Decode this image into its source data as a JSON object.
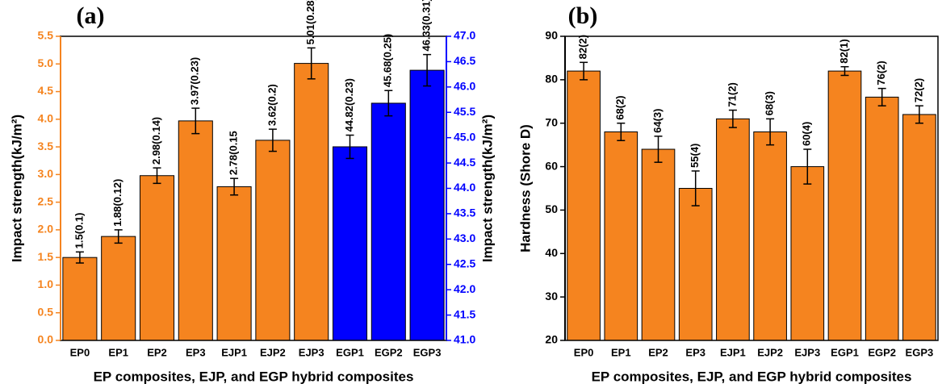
{
  "chart_data": [
    {
      "type": "bar",
      "title": "(a)",
      "xlabel": "EP composites, EJP, and EGP hybrid composites",
      "ylabel": "Impact strength(kJ/m²)",
      "y2label": "Impact strength(kJ/m²)",
      "categories": [
        "EP0",
        "EP1",
        "EP2",
        "EP3",
        "EJP1",
        "EJP2",
        "EJP3",
        "EGP1",
        "EGP2",
        "EGP3"
      ],
      "ylim": [
        0,
        5.5
      ],
      "yticks": [
        {
          "value": 0,
          "label": "0.0"
        },
        0.5,
        {
          "value": 1,
          "label": "1.0"
        },
        1.5,
        {
          "value": 2,
          "label": "2.0"
        },
        2.5,
        {
          "value": 3,
          "label": "3.0"
        },
        3.5,
        {
          "value": 4,
          "label": "4.0"
        },
        4.5,
        {
          "value": 5,
          "label": "5.0"
        },
        5.5
      ],
      "y2lim": [
        41,
        47
      ],
      "y2ticks": [
        {
          "value": 41,
          "label": "41.0"
        },
        41.5,
        {
          "value": 42,
          "label": "42.0"
        },
        42.5,
        {
          "value": 43,
          "label": "43.0"
        },
        43.5,
        {
          "value": 44,
          "label": "44.0"
        },
        44.5,
        {
          "value": 45,
          "label": "45.0"
        },
        45.5,
        {
          "value": 46,
          "label": "46.0"
        },
        46.5,
        {
          "value": 47,
          "label": "47.0"
        }
      ],
      "y_color": "#f5841f",
      "y2_color": "#0000ff",
      "series": [
        {
          "color": "#f5841f",
          "values": [
            1.5,
            1.88,
            2.98,
            3.97,
            2.78,
            3.62,
            5.01,
            null,
            null,
            null
          ],
          "errors": [
            0.1,
            0.12,
            0.14,
            0.23,
            0.15,
            0.2,
            0.28,
            null,
            null,
            null
          ],
          "value_labels": [
            "1.5(0.1)",
            "1.88(0.12)",
            "2.98(0.14)",
            "3.97(0.23)",
            "2.78(0.15",
            "3.62(0.2)",
            "5.01(0.28)",
            null,
            null,
            null
          ]
        },
        {
          "color": "#0000ff",
          "axis": "y2",
          "values": [
            null,
            null,
            null,
            null,
            null,
            null,
            null,
            44.82,
            45.68,
            46.33
          ],
          "errors": [
            null,
            null,
            null,
            null,
            null,
            null,
            null,
            0.23,
            0.25,
            0.31
          ],
          "value_labels": [
            null,
            null,
            null,
            null,
            null,
            null,
            null,
            "44.82(0.23)",
            "45.68(0.25)",
            "46.33(0.31)"
          ]
        }
      ]
    },
    {
      "type": "bar",
      "title": "(b)",
      "xlabel": "EP composites, EJP, and EGP hybrid composites",
      "ylabel": "Hardness (Shore D)",
      "categories": [
        "EP0",
        "EP1",
        "EP2",
        "EP3",
        "EJP1",
        "EJP2",
        "EJP3",
        "EGP1",
        "EGP2",
        "EGP3"
      ],
      "ylim": [
        20,
        90
      ],
      "yticks": [
        20,
        30,
        40,
        50,
        60,
        70,
        80,
        90
      ],
      "y_color": "#000000",
      "series": [
        {
          "color": "#f5841f",
          "values": [
            82,
            68,
            64,
            55,
            71,
            68,
            60,
            82,
            76,
            72
          ],
          "errors": [
            2,
            2,
            3,
            4,
            2,
            3,
            4,
            1,
            2,
            2
          ],
          "value_labels": [
            "82(2)",
            "68(2)",
            "64(3)",
            "55(4)",
            "71(2)",
            "68(3)",
            "60(4)",
            "82(1)",
            "76(2)",
            "72(2)"
          ]
        }
      ]
    }
  ]
}
